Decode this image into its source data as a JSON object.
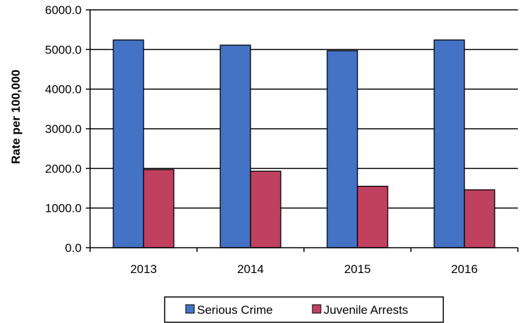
{
  "chart_data": {
    "type": "bar",
    "categories": [
      "2013",
      "2014",
      "2015",
      "2016"
    ],
    "series": [
      {
        "name": "Serious Crime",
        "values": [
          5240,
          5110,
          4970,
          5240
        ],
        "color": "#4472C4"
      },
      {
        "name": "Juvenile Arrests",
        "values": [
          1970,
          1930,
          1550,
          1460
        ],
        "color": "#C0415F"
      }
    ],
    "ylabel": "Rate per 100,000",
    "xlabel": "",
    "ylim": [
      0,
      6000
    ],
    "yticks": [
      0,
      1000,
      2000,
      3000,
      4000,
      5000,
      6000
    ],
    "ytick_labels": [
      "0.0",
      "1000.0",
      "2000.0",
      "3000.0",
      "4000.0",
      "5000.0",
      "6000.0"
    ],
    "grid": true,
    "legend_position": "bottom"
  }
}
